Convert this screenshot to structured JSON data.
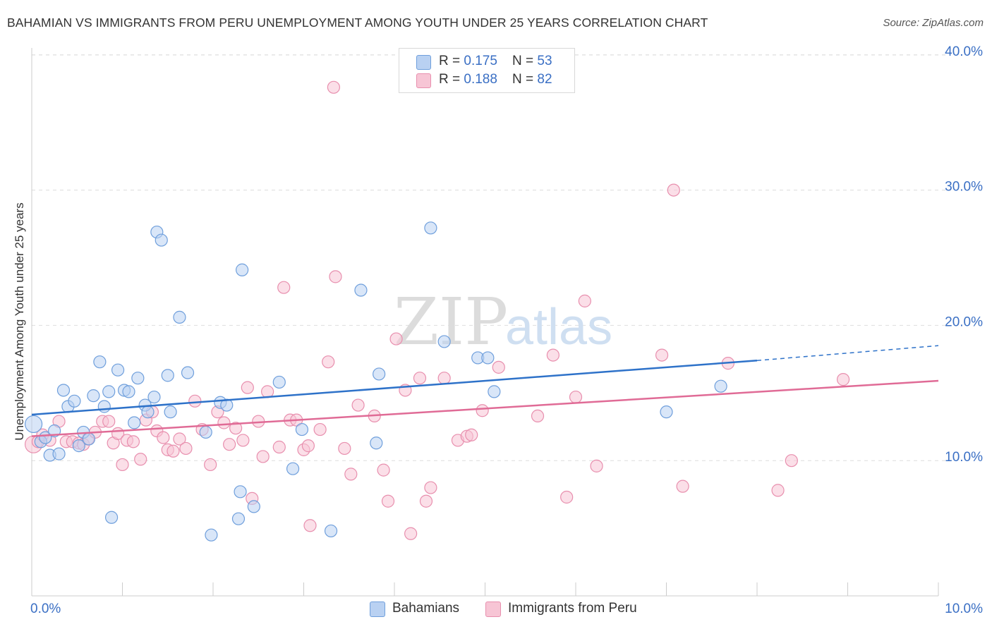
{
  "title": "BAHAMIAN VS IMMIGRANTS FROM PERU UNEMPLOYMENT AMONG YOUTH UNDER 25 YEARS CORRELATION CHART",
  "source": "Source: ZipAtlas.com",
  "watermark": {
    "zip": "ZIP",
    "atlas": "atlas"
  },
  "legend": {
    "rows": [
      {
        "r_label": "R = ",
        "r_value": "0.175",
        "n_label": "N = ",
        "n_value": "53"
      },
      {
        "r_label": "R = ",
        "r_value": "0.188",
        "n_label": "N = ",
        "n_value": "82"
      }
    ],
    "bottom": [
      "Bahamians",
      "Immigrants from Peru"
    ]
  },
  "colors": {
    "blue_fill": "#b9d1f2",
    "blue_stroke": "#6f9fdc",
    "blue_line": "#2e72c9",
    "pink_fill": "#f7c5d5",
    "pink_stroke": "#e88fae",
    "pink_line": "#e06b96",
    "tick_label": "#3a6fc4",
    "grid": "#dddddd"
  },
  "chart_data": {
    "type": "scatter",
    "title": "BAHAMIAN VS IMMIGRANTS FROM PERU UNEMPLOYMENT AMONG YOUTH UNDER 25 YEARS CORRELATION CHART",
    "xlabel": "",
    "ylabel": "Unemployment Among Youth under 25 years",
    "xlim": [
      0,
      10
    ],
    "ylim": [
      0,
      40
    ],
    "x_tick_labels": [
      "0.0%",
      "10.0%"
    ],
    "y_ticks": [
      10,
      20,
      30,
      40
    ],
    "y_tick_labels": [
      "10.0%",
      "20.0%",
      "30.0%",
      "40.0%"
    ],
    "grid": true,
    "legend_position": "top-center",
    "series": [
      {
        "name": "Bahamians",
        "r": 0.175,
        "n": 53,
        "trend": {
          "x0": 0,
          "y0": 13.4,
          "x1": 8.0,
          "y1": 17.4,
          "dashed_to_x": 10,
          "dashed_to_y": 18.5
        },
        "points": [
          [
            0.02,
            12.7
          ],
          [
            0.1,
            11.4
          ],
          [
            0.15,
            11.7
          ],
          [
            0.2,
            10.4
          ],
          [
            0.25,
            12.2
          ],
          [
            0.3,
            10.5
          ],
          [
            0.35,
            15.2
          ],
          [
            0.4,
            14.0
          ],
          [
            0.47,
            14.4
          ],
          [
            0.52,
            11.1
          ],
          [
            0.57,
            12.1
          ],
          [
            0.63,
            11.6
          ],
          [
            0.68,
            14.8
          ],
          [
            0.75,
            17.3
          ],
          [
            0.8,
            14.0
          ],
          [
            0.85,
            15.1
          ],
          [
            0.88,
            5.8
          ],
          [
            0.95,
            16.7
          ],
          [
            1.02,
            15.2
          ],
          [
            1.07,
            15.1
          ],
          [
            1.13,
            12.8
          ],
          [
            1.17,
            16.1
          ],
          [
            1.25,
            14.1
          ],
          [
            1.28,
            13.6
          ],
          [
            1.35,
            14.7
          ],
          [
            1.38,
            26.9
          ],
          [
            1.43,
            26.3
          ],
          [
            1.5,
            16.3
          ],
          [
            1.53,
            13.6
          ],
          [
            1.63,
            20.6
          ],
          [
            1.72,
            16.5
          ],
          [
            1.92,
            12.1
          ],
          [
            1.98,
            4.5
          ],
          [
            2.08,
            14.3
          ],
          [
            2.15,
            14.1
          ],
          [
            2.3,
            7.7
          ],
          [
            2.32,
            24.1
          ],
          [
            2.28,
            5.7
          ],
          [
            2.45,
            6.6
          ],
          [
            2.73,
            15.8
          ],
          [
            2.88,
            9.4
          ],
          [
            2.98,
            12.3
          ],
          [
            3.3,
            4.8
          ],
          [
            3.63,
            22.6
          ],
          [
            3.8,
            11.3
          ],
          [
            3.83,
            16.4
          ],
          [
            4.4,
            27.2
          ],
          [
            4.55,
            18.8
          ],
          [
            4.92,
            17.6
          ],
          [
            5.03,
            17.6
          ],
          [
            5.1,
            15.1
          ],
          [
            7.0,
            13.6
          ],
          [
            7.6,
            15.5
          ]
        ]
      },
      {
        "name": "Immigrants from Peru",
        "r": 0.188,
        "n": 82,
        "trend": {
          "x0": 0,
          "y0": 11.8,
          "x1": 10,
          "y1": 15.9
        },
        "points": [
          [
            0.02,
            11.2
          ],
          [
            0.07,
            11.4
          ],
          [
            0.12,
            11.9
          ],
          [
            0.2,
            11.5
          ],
          [
            0.3,
            12.9
          ],
          [
            0.38,
            11.4
          ],
          [
            0.45,
            11.4
          ],
          [
            0.52,
            11.3
          ],
          [
            0.57,
            11.2
          ],
          [
            0.62,
            11.6
          ],
          [
            0.7,
            12.1
          ],
          [
            0.78,
            12.9
          ],
          [
            0.85,
            12.9
          ],
          [
            0.9,
            11.3
          ],
          [
            0.95,
            12.0
          ],
          [
            1.0,
            9.7
          ],
          [
            1.05,
            11.5
          ],
          [
            1.12,
            11.4
          ],
          [
            1.2,
            10.1
          ],
          [
            1.26,
            13.0
          ],
          [
            1.33,
            13.6
          ],
          [
            1.38,
            12.2
          ],
          [
            1.45,
            11.7
          ],
          [
            1.5,
            10.8
          ],
          [
            1.56,
            10.7
          ],
          [
            1.63,
            11.6
          ],
          [
            1.7,
            10.9
          ],
          [
            1.8,
            14.4
          ],
          [
            1.88,
            12.3
          ],
          [
            1.97,
            9.7
          ],
          [
            2.05,
            13.6
          ],
          [
            2.12,
            12.8
          ],
          [
            2.18,
            11.2
          ],
          [
            2.25,
            12.4
          ],
          [
            2.33,
            11.5
          ],
          [
            2.38,
            15.4
          ],
          [
            2.43,
            7.2
          ],
          [
            2.5,
            12.9
          ],
          [
            2.55,
            10.3
          ],
          [
            2.6,
            15.1
          ],
          [
            2.73,
            11.0
          ],
          [
            2.78,
            22.8
          ],
          [
            2.85,
            13.0
          ],
          [
            2.92,
            13.0
          ],
          [
            3.0,
            10.8
          ],
          [
            3.05,
            11.1
          ],
          [
            3.07,
            5.2
          ],
          [
            3.18,
            12.3
          ],
          [
            3.27,
            17.3
          ],
          [
            3.33,
            37.6
          ],
          [
            3.35,
            23.6
          ],
          [
            3.45,
            10.9
          ],
          [
            3.52,
            9.0
          ],
          [
            3.6,
            14.1
          ],
          [
            3.78,
            13.3
          ],
          [
            3.88,
            9.3
          ],
          [
            3.93,
            7.0
          ],
          [
            4.02,
            19.0
          ],
          [
            4.12,
            15.2
          ],
          [
            4.18,
            4.6
          ],
          [
            4.28,
            16.1
          ],
          [
            4.35,
            7.0
          ],
          [
            4.4,
            8.0
          ],
          [
            4.55,
            16.1
          ],
          [
            4.7,
            11.5
          ],
          [
            4.8,
            11.8
          ],
          [
            4.85,
            11.9
          ],
          [
            4.97,
            13.7
          ],
          [
            5.15,
            16.9
          ],
          [
            5.58,
            13.3
          ],
          [
            5.75,
            17.8
          ],
          [
            5.9,
            7.3
          ],
          [
            6.0,
            14.7
          ],
          [
            6.1,
            21.8
          ],
          [
            6.23,
            9.6
          ],
          [
            6.95,
            17.8
          ],
          [
            7.08,
            30.0
          ],
          [
            7.18,
            8.1
          ],
          [
            7.68,
            17.2
          ],
          [
            8.23,
            7.8
          ],
          [
            8.38,
            10.0
          ],
          [
            8.95,
            16.0
          ]
        ]
      }
    ]
  }
}
